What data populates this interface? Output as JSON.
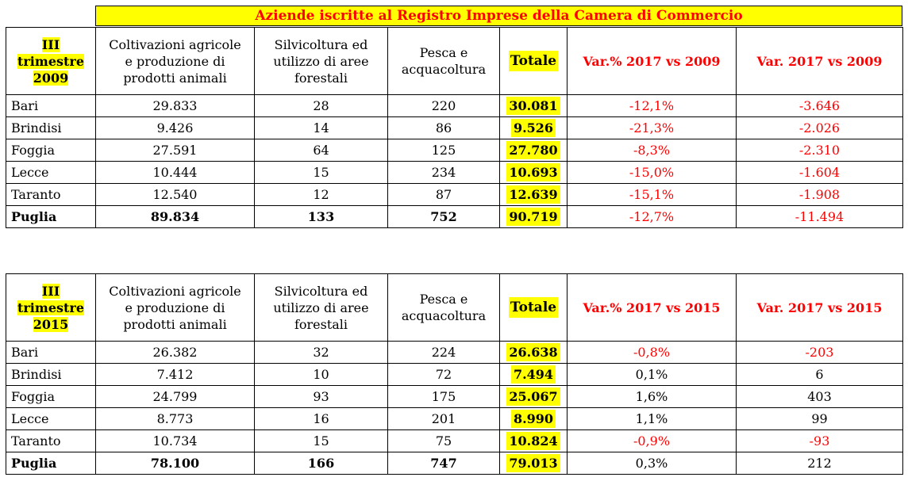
{
  "title": "Aziende iscritte al Registro Imprese della Camera di Commercio",
  "colors": {
    "highlight": "#ffff00",
    "negative": "#ff0000",
    "text": "#000000"
  },
  "columns": {
    "agri": "Coltivazioni agricole e produzione di prodotti animali",
    "silvi": "Silvicoltura ed utilizzo di aree forestali",
    "pesca": "Pesca e acquacoltura",
    "totale": "Totale"
  },
  "tables": [
    {
      "period": [
        "III",
        "trimestre",
        "2009"
      ],
      "pct_header": "Var.% 2017 vs 2009",
      "abs_header": "Var. 2017 vs 2009",
      "rows": [
        {
          "name": "Bari",
          "agri": "29.833",
          "silvi": "28",
          "pesca": "220",
          "totale": "30.081",
          "pct": "-12,1%",
          "abs": "-3.646",
          "neg_pct": true,
          "neg_abs": true
        },
        {
          "name": "Brindisi",
          "agri": "9.426",
          "silvi": "14",
          "pesca": "86",
          "totale": "9.526",
          "pct": "-21,3%",
          "abs": "-2.026",
          "neg_pct": true,
          "neg_abs": true
        },
        {
          "name": "Foggia",
          "agri": "27.591",
          "silvi": "64",
          "pesca": "125",
          "totale": "27.780",
          "pct": "-8,3%",
          "abs": "-2.310",
          "neg_pct": true,
          "neg_abs": true
        },
        {
          "name": "Lecce",
          "agri": "10.444",
          "silvi": "15",
          "pesca": "234",
          "totale": "10.693",
          "pct": "-15,0%",
          "abs": "-1.604",
          "neg_pct": true,
          "neg_abs": true
        },
        {
          "name": "Taranto",
          "agri": "12.540",
          "silvi": "12",
          "pesca": "87",
          "totale": "12.639",
          "pct": "-15,1%",
          "abs": "-1.908",
          "neg_pct": true,
          "neg_abs": true
        },
        {
          "name": "Puglia",
          "agri": "89.834",
          "silvi": "133",
          "pesca": "752",
          "totale": "90.719",
          "pct": "-12,7%",
          "abs": "-11.494",
          "neg_pct": true,
          "neg_abs": true,
          "bold": true
        }
      ]
    },
    {
      "period": [
        "III",
        "trimestre",
        "2015"
      ],
      "pct_header": "Var.% 2017 vs 2015",
      "abs_header": "Var. 2017 vs 2015",
      "rows": [
        {
          "name": "Bari",
          "agri": "26.382",
          "silvi": "32",
          "pesca": "224",
          "totale": "26.638",
          "pct": "-0,8%",
          "abs": "-203",
          "neg_pct": true,
          "neg_abs": true
        },
        {
          "name": "Brindisi",
          "agri": "7.412",
          "silvi": "10",
          "pesca": "72",
          "totale": "7.494",
          "pct": "0,1%",
          "abs": "6",
          "neg_pct": false,
          "neg_abs": false
        },
        {
          "name": "Foggia",
          "agri": "24.799",
          "silvi": "93",
          "pesca": "175",
          "totale": "25.067",
          "pct": "1,6%",
          "abs": "403",
          "neg_pct": false,
          "neg_abs": false
        },
        {
          "name": "Lecce",
          "agri": "8.773",
          "silvi": "16",
          "pesca": "201",
          "totale": "8.990",
          "pct": "1,1%",
          "abs": "99",
          "neg_pct": false,
          "neg_abs": false
        },
        {
          "name": "Taranto",
          "agri": "10.734",
          "silvi": "15",
          "pesca": "75",
          "totale": "10.824",
          "pct": "-0,9%",
          "abs": "-93",
          "neg_pct": true,
          "neg_abs": true
        },
        {
          "name": "Puglia",
          "agri": "78.100",
          "silvi": "166",
          "pesca": "747",
          "totale": "79.013",
          "pct": "0,3%",
          "abs": "212",
          "neg_pct": false,
          "neg_abs": false,
          "bold": true
        }
      ]
    }
  ]
}
